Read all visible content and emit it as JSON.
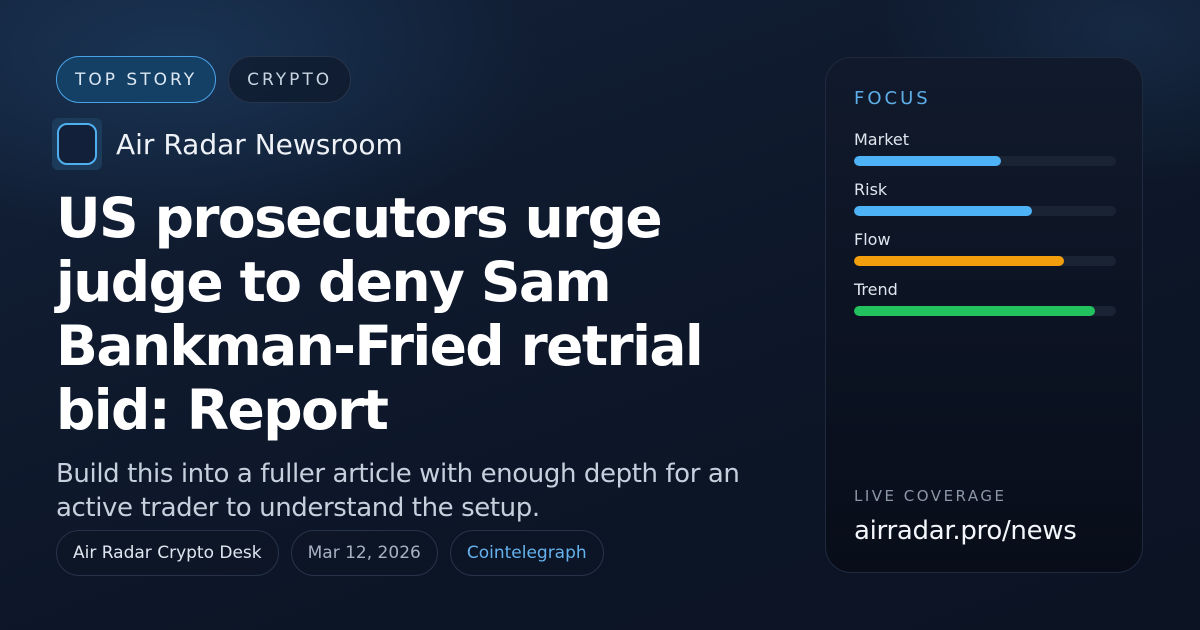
{
  "tags": [
    {
      "label": "TOP STORY",
      "primary": true
    },
    {
      "label": "CRYPTO",
      "primary": false
    }
  ],
  "source": {
    "name": "Air Radar Newsroom",
    "icon": "logo-square-icon"
  },
  "headline": "US prosecutors urge judge to deny Sam Bankman-Fried retrial bid: Report",
  "summary": "Build this into a fuller article with enough depth for an active trader to understand the setup.",
  "meta": {
    "author": "Air Radar Crypto Desk",
    "date": "Mar 12, 2026",
    "publisher": "Cointelegraph"
  },
  "focus_panel": {
    "title": "FOCUS",
    "bars": [
      {
        "label": "Market",
        "percent": 56,
        "color": "#4db2f6"
      },
      {
        "label": "Risk",
        "percent": 68,
        "color": "#4db2f6"
      },
      {
        "label": "Flow",
        "percent": 80,
        "color": "#f29e0d"
      },
      {
        "label": "Trend",
        "percent": 92,
        "color": "#22c35e"
      }
    ],
    "live_label": "LIVE COVERAGE",
    "live_url": "airradar.pro/news"
  },
  "colors": {
    "accent": "#4aa3e6",
    "link": "#64b3ee",
    "background": "#0f1a2e"
  }
}
